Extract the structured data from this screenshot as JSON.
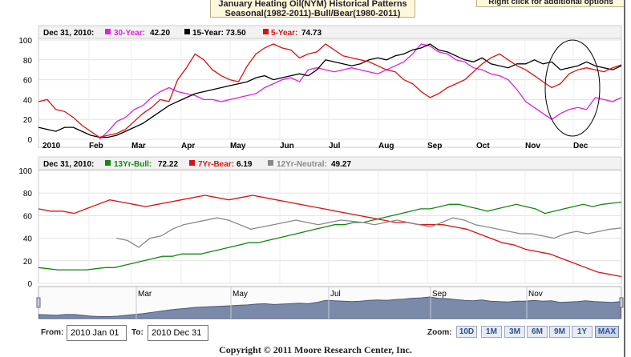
{
  "header": {
    "title_line1": "January Heating Oil(NYM) Historical Patterns",
    "title_line2": "Seasonal(1982-2011)-Bull/Bear(1980-2011)",
    "right_click": "Right click for additional options"
  },
  "footer": {
    "from_label": "From:",
    "from_value": "2010 Jan 01",
    "to_label": "To:",
    "to_value": "2010 Dec 31",
    "zoom_label": "Zoom:",
    "zoom_buttons": [
      "10D",
      "1M",
      "3M",
      "6M",
      "9M",
      "1Y",
      "MAX"
    ],
    "active_zoom": "MAX",
    "copyright": "Copyright © 2011 Moore Research Center, Inc."
  },
  "colors": {
    "magenta": "#dd22dd",
    "black": "#000000",
    "red": "#dd1111",
    "green": "#118811",
    "gray": "#888888",
    "navigator_fill": "#7b8aa8"
  },
  "chart_data": [
    {
      "type": "line",
      "title": "",
      "ylim": [
        0,
        100
      ],
      "yticks": [
        0,
        20,
        40,
        60,
        80,
        100
      ],
      "x_ticks": [
        "2010",
        "Feb",
        "Mar",
        "Apr",
        "May",
        "Jun",
        "Jul",
        "Aug",
        "Sep",
        "Oct",
        "Nov",
        "Dec"
      ],
      "legend": {
        "date": "Dec 31, 2010:"
      },
      "grid": true,
      "annotation": "ellipse around December",
      "series": [
        {
          "name": "30-Year",
          "last": "42.20",
          "color": "#dd22dd",
          "values": [
            null,
            null,
            null,
            null,
            null,
            null,
            null,
            0,
            8,
            18,
            22,
            30,
            34,
            42,
            48,
            52,
            48,
            46,
            44,
            40,
            40,
            38,
            40,
            42,
            44,
            46,
            52,
            56,
            60,
            62,
            58,
            70,
            72,
            70,
            68,
            70,
            72,
            70,
            68,
            66,
            70,
            74,
            78,
            86,
            96,
            94,
            88,
            86,
            80,
            78,
            72,
            70,
            66,
            64,
            60,
            50,
            38,
            32,
            26,
            20,
            26,
            30,
            32,
            30,
            42,
            40,
            38,
            42
          ]
        },
        {
          "name": "15-Year",
          "last": "73.50",
          "color": "#000000",
          "values": [
            12,
            10,
            8,
            12,
            12,
            8,
            4,
            2,
            2,
            4,
            8,
            12,
            16,
            22,
            28,
            34,
            38,
            42,
            46,
            48,
            50,
            52,
            54,
            56,
            58,
            62,
            64,
            60,
            62,
            64,
            66,
            64,
            70,
            80,
            78,
            76,
            74,
            76,
            80,
            82,
            80,
            84,
            86,
            90,
            92,
            96,
            90,
            88,
            84,
            80,
            78,
            82,
            76,
            74,
            72,
            76,
            76,
            80,
            76,
            78,
            70,
            72,
            74,
            78,
            74,
            72,
            70,
            74
          ]
        },
        {
          "name": "5-Year",
          "last": "74.73",
          "color": "#dd1111",
          "values": [
            38,
            40,
            30,
            28,
            22,
            14,
            8,
            2,
            4,
            6,
            10,
            18,
            26,
            32,
            40,
            38,
            60,
            72,
            86,
            80,
            70,
            64,
            60,
            58,
            74,
            86,
            92,
            96,
            92,
            90,
            82,
            86,
            88,
            96,
            90,
            84,
            82,
            80,
            78,
            74,
            70,
            68,
            60,
            56,
            48,
            42,
            46,
            52,
            56,
            60,
            68,
            76,
            82,
            86,
            80,
            74,
            70,
            64,
            58,
            52,
            56,
            66,
            70,
            72,
            70,
            68,
            72,
            75
          ]
        }
      ]
    },
    {
      "type": "line",
      "title": "",
      "ylim": [
        0,
        100
      ],
      "yticks": [
        0,
        20,
        40,
        60,
        80,
        100
      ],
      "legend": {
        "date": "Dec 31, 2010:"
      },
      "grid": true,
      "series": [
        {
          "name": "13Yr-Bull",
          "last": "72.22",
          "color": "#118811",
          "values": [
            14,
            13,
            12,
            12,
            12,
            12,
            13,
            14,
            14,
            16,
            18,
            20,
            22,
            24,
            24,
            26,
            26,
            26,
            28,
            30,
            32,
            34,
            36,
            36,
            38,
            40,
            42,
            44,
            46,
            48,
            50,
            52,
            52,
            54,
            54,
            56,
            58,
            60,
            62,
            64,
            66,
            66,
            68,
            70,
            70,
            68,
            66,
            64,
            66,
            68,
            70,
            68,
            66,
            62,
            64,
            66,
            68,
            70,
            68,
            70,
            71,
            72
          ]
        },
        {
          "name": "7Yr-Bear",
          "last": "6.19",
          "color": "#dd1111",
          "values": [
            66,
            64,
            64,
            62,
            66,
            70,
            74,
            72,
            70,
            68,
            70,
            72,
            74,
            76,
            78,
            76,
            74,
            76,
            78,
            76,
            74,
            72,
            70,
            68,
            66,
            64,
            62,
            60,
            58,
            56,
            54,
            54,
            52,
            52,
            52,
            50,
            48,
            44,
            40,
            36,
            34,
            30,
            28,
            26,
            22,
            18,
            14,
            10,
            8,
            6
          ]
        },
        {
          "name": "12Yr-Neutral",
          "last": "49.27",
          "color": "#888888",
          "values": [
            40,
            38,
            32,
            40,
            42,
            48,
            52,
            54,
            56,
            58,
            56,
            52,
            48,
            50,
            52,
            54,
            56,
            54,
            52,
            54,
            56,
            55,
            54,
            52,
            54,
            56,
            54,
            52,
            50,
            54,
            58,
            56,
            52,
            50,
            48,
            46,
            44,
            44,
            42,
            40,
            44,
            46,
            44,
            46,
            48,
            49
          ]
        }
      ]
    }
  ]
}
